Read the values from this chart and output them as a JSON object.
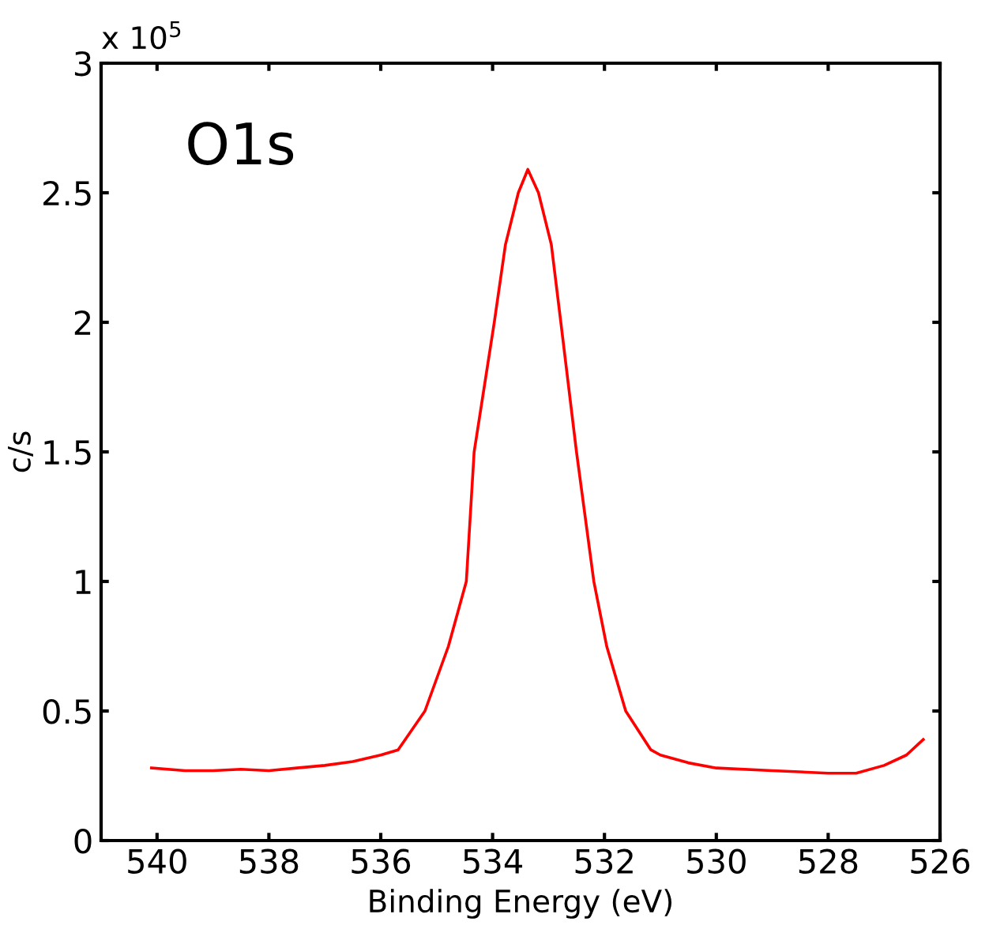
{
  "chart_data": {
    "type": "line",
    "xlabel": "Binding Energy (eV)",
    "ylabel": "c/s",
    "annotations": [
      "O1s",
      "x 10$^{5}$"
    ],
    "x": [
      540.1,
      539.5,
      539,
      538.5,
      538,
      537.5,
      537,
      536.5,
      536,
      535.69,
      535.21,
      534.79,
      534.47,
      534.33,
      533.97,
      533.77,
      533.54,
      533.37,
      533.18,
      532.95,
      532.78,
      532.5,
      532.19,
      531.96,
      531.62,
      531.17,
      531,
      530.5,
      530,
      529,
      528,
      527.5,
      527,
      526.6,
      526.3
    ],
    "series": [
      {
        "color": "#ff0000",
        "values": [
          0.28,
          0.27,
          0.27,
          0.275,
          0.27,
          0.28,
          0.29,
          0.305,
          0.33,
          0.35,
          0.5,
          0.75,
          1.0,
          1.5,
          2.0,
          2.3,
          2.5,
          2.59,
          2.5,
          2.3,
          2.0,
          1.5,
          1.0,
          0.75,
          0.5,
          0.35,
          0.33,
          0.3,
          0.28,
          0.27,
          0.26,
          0.26,
          0.29,
          0.33,
          0.39
        ]
      }
    ],
    "xlim": [
      541,
      526
    ],
    "xticks": [
      540,
      538,
      536,
      534,
      532,
      530,
      528,
      526
    ],
    "ylim": [
      0,
      3
    ],
    "yticks": [
      0,
      0.5,
      1,
      1.5,
      2,
      2.5,
      3
    ],
    "grid": false,
    "legend": false,
    "line_style": "solid",
    "marker": "none"
  }
}
